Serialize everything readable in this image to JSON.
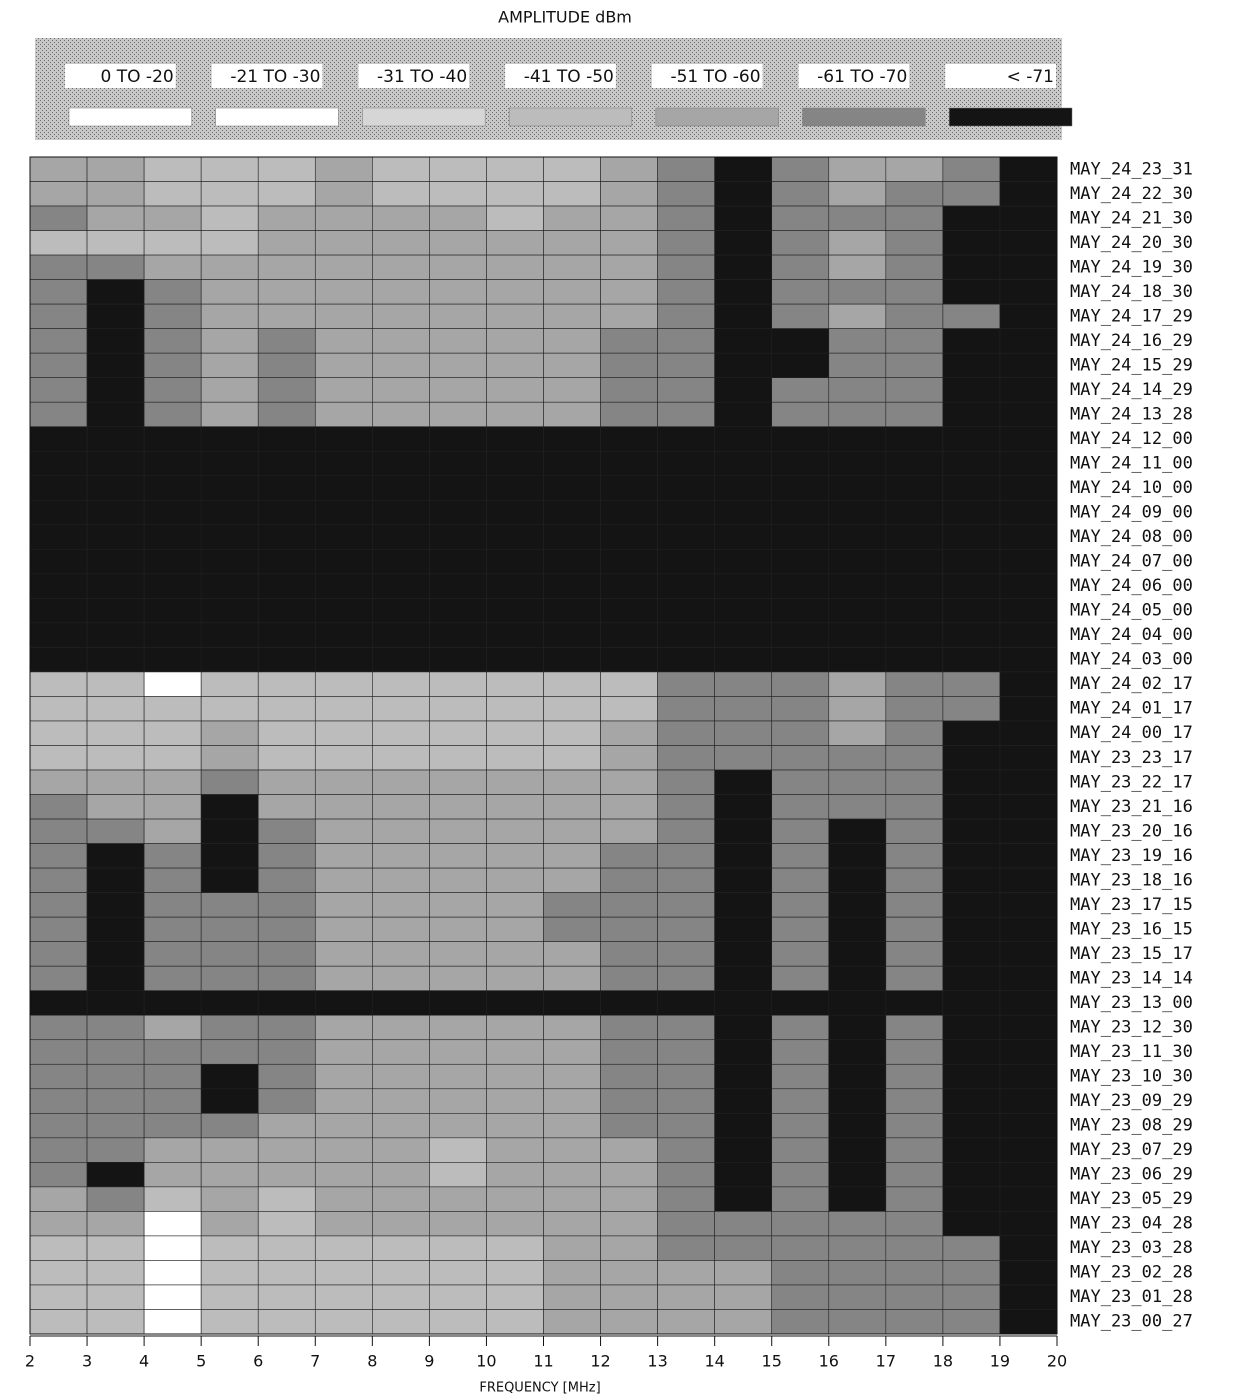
{
  "chart_data": {
    "type": "heatmap",
    "title": "AMPLITUDE dBm",
    "xlabel": "FREQUENCY [MHz]",
    "legend": [
      {
        "name": "0 TO -20",
        "color": "#ffffff"
      },
      {
        "name": "-21 TO -30",
        "color": "#ffffff"
      },
      {
        "name": "-31 TO -40",
        "color": "#d6d6d6"
      },
      {
        "name": "-41 TO -50",
        "color": "#bcbcbc"
      },
      {
        "name": "-51 TO -60",
        "color": "#a6a6a6"
      },
      {
        "name": "-61 TO -70",
        "color": "#858585"
      },
      {
        "name": "< -71",
        "color": "#141414"
      }
    ],
    "categories": [
      "MAY_24_23_31",
      "MAY_24_22_30",
      "MAY_24_21_30",
      "MAY_24_20_30",
      "MAY_24_19_30",
      "MAY_24_18_30",
      "MAY_24_17_29",
      "MAY_24_16_29",
      "MAY_24_15_29",
      "MAY_24_14_29",
      "MAY_24_13_28",
      "MAY_24_12_00",
      "MAY_24_11_00",
      "MAY_24_10_00",
      "MAY_24_09_00",
      "MAY_24_08_00",
      "MAY_24_07_00",
      "MAY_24_06_00",
      "MAY_24_05_00",
      "MAY_24_04_00",
      "MAY_24_03_00",
      "MAY_24_02_17",
      "MAY_24_01_17",
      "MAY_24_00_17",
      "MAY_23_23_17",
      "MAY_23_22_17",
      "MAY_23_21_16",
      "MAY_23_20_16",
      "MAY_23_19_16",
      "MAY_23_18_16",
      "MAY_23_17_15",
      "MAY_23_16_15",
      "MAY_23_15_17",
      "MAY_23_14_14",
      "MAY_23_13_00",
      "MAY_23_12_30",
      "MAY_23_11_30",
      "MAY_23_10_30",
      "MAY_23_09_29",
      "MAY_23_08_29",
      "MAY_23_07_29",
      "MAY_23_06_29",
      "MAY_23_05_29",
      "MAY_23_04_28",
      "MAY_23_03_28",
      "MAY_23_02_28",
      "MAY_23_01_28",
      "MAY_23_00_27"
    ],
    "bins": [
      2,
      3,
      4,
      5,
      6,
      7,
      8,
      9,
      10,
      11,
      12,
      13,
      14,
      15,
      16,
      17,
      18,
      19,
      20
    ],
    "xlim": [
      2,
      20
    ],
    "xticks": [
      2,
      3,
      4,
      5,
      6,
      7,
      8,
      9,
      10,
      11,
      12,
      13,
      14,
      15,
      16,
      17,
      18,
      19,
      20
    ],
    "values": [
      [
        4,
        4,
        3,
        3,
        3,
        4,
        3,
        3,
        3,
        3,
        4,
        5,
        6,
        5,
        4,
        4,
        5,
        6
      ],
      [
        4,
        4,
        3,
        3,
        3,
        4,
        3,
        3,
        3,
        3,
        4,
        5,
        6,
        5,
        4,
        5,
        5,
        6
      ],
      [
        5,
        4,
        4,
        3,
        4,
        4,
        4,
        4,
        3,
        4,
        4,
        5,
        6,
        5,
        5,
        5,
        6,
        6
      ],
      [
        3,
        3,
        3,
        3,
        4,
        4,
        4,
        4,
        4,
        4,
        4,
        5,
        6,
        5,
        4,
        5,
        6,
        6
      ],
      [
        5,
        5,
        4,
        4,
        4,
        4,
        4,
        4,
        4,
        4,
        4,
        5,
        6,
        5,
        4,
        5,
        6,
        6
      ],
      [
        5,
        6,
        5,
        4,
        4,
        4,
        4,
        4,
        4,
        4,
        4,
        5,
        6,
        5,
        5,
        5,
        6,
        6
      ],
      [
        5,
        6,
        5,
        4,
        4,
        4,
        4,
        4,
        4,
        4,
        4,
        5,
        6,
        5,
        4,
        5,
        5,
        6
      ],
      [
        5,
        6,
        5,
        4,
        5,
        4,
        4,
        4,
        4,
        4,
        5,
        5,
        6,
        6,
        5,
        5,
        6,
        6
      ],
      [
        5,
        6,
        5,
        4,
        5,
        4,
        4,
        4,
        4,
        4,
        5,
        5,
        6,
        6,
        5,
        5,
        6,
        6
      ],
      [
        5,
        6,
        5,
        4,
        5,
        4,
        4,
        4,
        4,
        4,
        5,
        5,
        6,
        5,
        5,
        5,
        6,
        6
      ],
      [
        5,
        6,
        5,
        4,
        5,
        4,
        4,
        4,
        4,
        4,
        5,
        5,
        6,
        5,
        5,
        5,
        6,
        6
      ],
      [
        6,
        6,
        6,
        6,
        6,
        6,
        6,
        6,
        6,
        6,
        6,
        6,
        6,
        6,
        6,
        6,
        6,
        6
      ],
      [
        6,
        6,
        6,
        6,
        6,
        6,
        6,
        6,
        6,
        6,
        6,
        6,
        6,
        6,
        6,
        6,
        6,
        6
      ],
      [
        6,
        6,
        6,
        6,
        6,
        6,
        6,
        6,
        6,
        6,
        6,
        6,
        6,
        6,
        6,
        6,
        6,
        6
      ],
      [
        6,
        6,
        6,
        6,
        6,
        6,
        6,
        6,
        6,
        6,
        6,
        6,
        6,
        6,
        6,
        6,
        6,
        6
      ],
      [
        6,
        6,
        6,
        6,
        6,
        6,
        6,
        6,
        6,
        6,
        6,
        6,
        6,
        6,
        6,
        6,
        6,
        6
      ],
      [
        6,
        6,
        6,
        6,
        6,
        6,
        6,
        6,
        6,
        6,
        6,
        6,
        6,
        6,
        6,
        6,
        6,
        6
      ],
      [
        6,
        6,
        6,
        6,
        6,
        6,
        6,
        6,
        6,
        6,
        6,
        6,
        6,
        6,
        6,
        6,
        6,
        6
      ],
      [
        6,
        6,
        6,
        6,
        6,
        6,
        6,
        6,
        6,
        6,
        6,
        6,
        6,
        6,
        6,
        6,
        6,
        6
      ],
      [
        6,
        6,
        6,
        6,
        6,
        6,
        6,
        6,
        6,
        6,
        6,
        6,
        6,
        6,
        6,
        6,
        6,
        6
      ],
      [
        6,
        6,
        6,
        6,
        6,
        6,
        6,
        6,
        6,
        6,
        6,
        6,
        6,
        6,
        6,
        6,
        6,
        6
      ],
      [
        3,
        3,
        1,
        3,
        3,
        3,
        3,
        3,
        3,
        3,
        3,
        5,
        5,
        5,
        4,
        5,
        5,
        6
      ],
      [
        3,
        3,
        3,
        3,
        3,
        3,
        3,
        3,
        3,
        3,
        3,
        5,
        5,
        5,
        4,
        5,
        5,
        6
      ],
      [
        3,
        3,
        3,
        4,
        3,
        3,
        3,
        3,
        3,
        3,
        4,
        5,
        5,
        5,
        4,
        5,
        6,
        6
      ],
      [
        3,
        3,
        3,
        4,
        3,
        3,
        3,
        3,
        3,
        3,
        4,
        5,
        5,
        5,
        5,
        5,
        6,
        6
      ],
      [
        4,
        4,
        4,
        5,
        4,
        4,
        4,
        4,
        4,
        4,
        4,
        5,
        6,
        5,
        5,
        5,
        6,
        6
      ],
      [
        5,
        4,
        4,
        6,
        4,
        4,
        4,
        4,
        4,
        4,
        4,
        5,
        6,
        5,
        5,
        5,
        6,
        6
      ],
      [
        5,
        5,
        4,
        6,
        5,
        4,
        4,
        4,
        4,
        4,
        4,
        5,
        6,
        5,
        6,
        5,
        6,
        6
      ],
      [
        5,
        6,
        5,
        6,
        5,
        4,
        4,
        4,
        4,
        4,
        5,
        5,
        6,
        5,
        6,
        5,
        6,
        6
      ],
      [
        5,
        6,
        5,
        6,
        5,
        4,
        4,
        4,
        4,
        4,
        5,
        5,
        6,
        5,
        6,
        5,
        6,
        6
      ],
      [
        5,
        6,
        5,
        5,
        5,
        4,
        4,
        4,
        4,
        5,
        5,
        5,
        6,
        5,
        6,
        5,
        6,
        6
      ],
      [
        5,
        6,
        5,
        5,
        5,
        4,
        4,
        4,
        4,
        5,
        5,
        5,
        6,
        5,
        6,
        5,
        6,
        6
      ],
      [
        5,
        6,
        5,
        5,
        5,
        4,
        4,
        4,
        4,
        4,
        5,
        5,
        6,
        5,
        6,
        5,
        6,
        6
      ],
      [
        5,
        6,
        5,
        5,
        5,
        4,
        4,
        4,
        4,
        4,
        5,
        5,
        6,
        5,
        6,
        5,
        6,
        6
      ],
      [
        6,
        6,
        6,
        6,
        6,
        6,
        6,
        6,
        6,
        6,
        6,
        6,
        6,
        6,
        6,
        6,
        6,
        6
      ],
      [
        5,
        5,
        4,
        5,
        5,
        4,
        4,
        4,
        4,
        4,
        5,
        5,
        6,
        5,
        6,
        5,
        6,
        6
      ],
      [
        5,
        5,
        5,
        5,
        5,
        4,
        4,
        4,
        4,
        4,
        5,
        5,
        6,
        5,
        6,
        5,
        6,
        6
      ],
      [
        5,
        5,
        5,
        6,
        5,
        4,
        4,
        4,
        4,
        4,
        5,
        5,
        6,
        5,
        6,
        5,
        6,
        6
      ],
      [
        5,
        5,
        5,
        6,
        5,
        4,
        4,
        4,
        4,
        4,
        5,
        5,
        6,
        5,
        6,
        5,
        6,
        6
      ],
      [
        5,
        5,
        5,
        5,
        4,
        4,
        4,
        4,
        4,
        4,
        5,
        5,
        6,
        5,
        6,
        5,
        6,
        6
      ],
      [
        5,
        5,
        4,
        4,
        4,
        4,
        4,
        3,
        4,
        4,
        4,
        5,
        6,
        5,
        6,
        5,
        6,
        6
      ],
      [
        5,
        6,
        4,
        4,
        4,
        4,
        4,
        3,
        4,
        4,
        4,
        5,
        6,
        5,
        6,
        5,
        6,
        6
      ],
      [
        4,
        5,
        3,
        4,
        3,
        4,
        4,
        4,
        4,
        4,
        4,
        5,
        6,
        5,
        6,
        5,
        6,
        6
      ],
      [
        4,
        4,
        1,
        4,
        3,
        4,
        4,
        4,
        4,
        4,
        4,
        5,
        5,
        5,
        5,
        5,
        6,
        6
      ],
      [
        3,
        3,
        1,
        3,
        3,
        3,
        3,
        3,
        3,
        4,
        4,
        5,
        5,
        5,
        5,
        5,
        5,
        6
      ],
      [
        3,
        3,
        1,
        3,
        3,
        3,
        3,
        3,
        3,
        4,
        4,
        4,
        4,
        5,
        5,
        5,
        5,
        6
      ],
      [
        3,
        3,
        1,
        3,
        3,
        3,
        3,
        3,
        3,
        4,
        4,
        4,
        4,
        5,
        5,
        5,
        5,
        6
      ],
      [
        3,
        3,
        1,
        3,
        3,
        3,
        3,
        3,
        3,
        4,
        4,
        4,
        4,
        5,
        5,
        5,
        5,
        6
      ]
    ]
  }
}
